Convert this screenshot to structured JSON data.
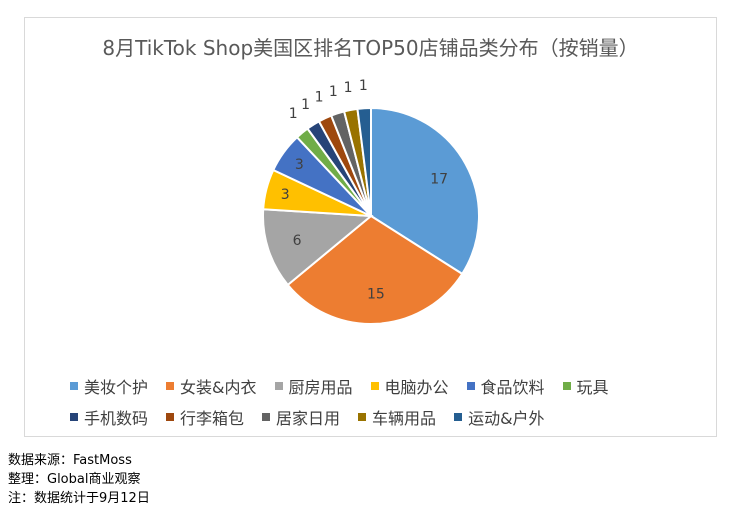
{
  "chart_data": {
    "type": "pie",
    "title": "8月TikTok Shop美国区排名TOP50店铺品类分布（按销量）",
    "categories": [
      "美妆个护",
      "女装&内衣",
      "厨房用品",
      "电脑办公",
      "食品饮料",
      "玩具",
      "手机数码",
      "行李箱包",
      "居家日用",
      "车辆用品",
      "运动&户外"
    ],
    "values": [
      17,
      15,
      6,
      3,
      3,
      1,
      1,
      1,
      1,
      1,
      1
    ],
    "colors": [
      "#5b9bd5",
      "#ed7d31",
      "#a5a5a5",
      "#ffc000",
      "#4472c4",
      "#70ad47",
      "#264478",
      "#9e480e",
      "#636363",
      "#997300",
      "#255e91"
    ],
    "legend_position": "bottom",
    "legend_rows": [
      [
        0,
        1,
        2,
        3,
        4,
        5
      ],
      [
        6,
        7,
        8,
        9,
        10
      ]
    ]
  },
  "notes": [
    "数据来源：FastMoss",
    "整理：Global商业观察",
    "注：数据统计于9月12日"
  ]
}
